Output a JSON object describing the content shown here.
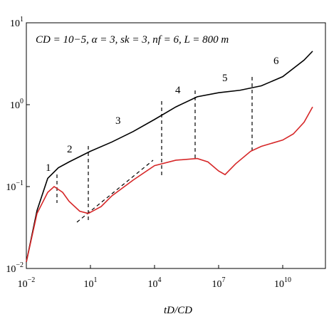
{
  "chart_data": {
    "type": "line",
    "annotation": "CD = 10−5, α = 3, sk = 3, nf = 6, L = 800 m",
    "x_label": "tD/CD",
    "region_labels": [
      "1",
      "2",
      "3",
      "4",
      "5",
      "6"
    ],
    "log_x": true,
    "log_y": true,
    "xlim": [
      0.01,
      1000000000000.0
    ],
    "ylim": [
      0.01,
      10
    ],
    "xticks": [
      {
        "value": 0.01,
        "label": "10^-2"
      },
      {
        "value": 10,
        "label": "10^1"
      },
      {
        "value": 10000,
        "label": "10^4"
      },
      {
        "value": 10000000,
        "label": "10^7"
      },
      {
        "value": 10000000000,
        "label": "10^10"
      }
    ],
    "yticks": [
      {
        "value": 0.01,
        "label": "10^-2"
      },
      {
        "value": 0.1,
        "label": "10^-1"
      },
      {
        "value": 1,
        "label": "10^0"
      },
      {
        "value": 10,
        "label": "10^1"
      }
    ],
    "series": [
      {
        "color": "#000000",
        "x": [
          0.01,
          0.0316,
          0.1,
          0.316,
          1,
          10,
          100,
          1000,
          10000,
          100000,
          1000000,
          10000000,
          100000000,
          1000000000,
          10000000000,
          100000000000,
          251000000000
        ],
        "values": [
          0.012,
          0.051,
          0.126,
          0.17,
          0.2,
          0.27,
          0.35,
          0.47,
          0.66,
          0.94,
          1.25,
          1.4,
          1.5,
          1.7,
          2.2,
          3.5,
          4.5
        ]
      },
      {
        "color": "#d62728",
        "x": [
          0.01,
          0.0316,
          0.1,
          0.2,
          0.5,
          1,
          3.16,
          7.94,
          31.6,
          100,
          1000,
          10000,
          100000,
          1000000,
          3160000,
          10000000,
          20000000,
          63100000,
          316000000,
          1000000000,
          10000000000,
          31600000000,
          100000000000,
          251000000000
        ],
        "values": [
          0.012,
          0.047,
          0.085,
          0.1,
          0.085,
          0.066,
          0.05,
          0.047,
          0.057,
          0.077,
          0.12,
          0.18,
          0.21,
          0.22,
          0.2,
          0.155,
          0.14,
          0.19,
          0.27,
          0.31,
          0.37,
          0.44,
          0.61,
          0.94
        ]
      }
    ]
  }
}
